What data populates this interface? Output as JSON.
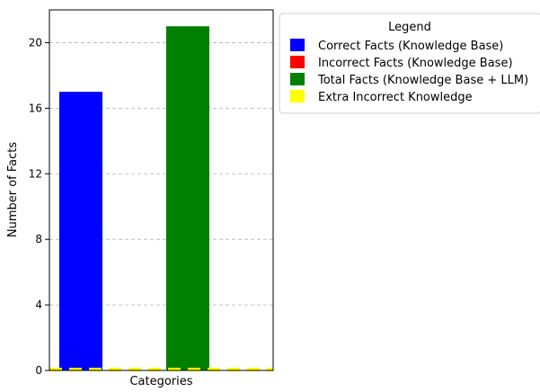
{
  "chart_data": {
    "type": "bar",
    "title": "",
    "xlabel": "Categories",
    "ylabel": "Number of Facts",
    "ylim": [
      0,
      22
    ],
    "yticks": [
      0,
      4,
      8,
      12,
      16,
      20
    ],
    "grid": "y-dashed",
    "bars": [
      {
        "series": "Correct Facts (Knowledge Base)",
        "value": 17,
        "color": "#0000ff"
      },
      {
        "series": "Total Facts (Knowledge Base + LLM)",
        "value": 21,
        "color": "#008000"
      }
    ],
    "baseline_series": {
      "series": "Extra Incorrect Knowledge",
      "value": 0,
      "color": "#ffff00",
      "style": "dashed"
    },
    "legend": {
      "title": "Legend",
      "placement": "outside-right-top",
      "entries": [
        {
          "label": "Correct Facts (Knowledge Base)",
          "color": "#0000ff"
        },
        {
          "label": "Incorrect Facts (Knowledge Base)",
          "color": "#ff0000"
        },
        {
          "label": "Total Facts (Knowledge Base + LLM)",
          "color": "#008000"
        },
        {
          "label": "Extra Incorrect Knowledge",
          "color": "#ffff00"
        }
      ]
    }
  }
}
